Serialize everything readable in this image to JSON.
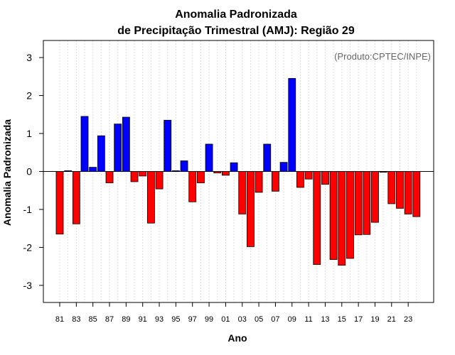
{
  "chart_data": {
    "type": "bar",
    "title": "Anomalia Padronizada",
    "subtitle": "de Precipitação Trimestral (AMJ): Região 29",
    "xlabel": "Ano",
    "ylabel": "Anomalia Padronizada",
    "credit": "(Produto:CPTEC/INPE)",
    "ylim": [
      -3.45,
      3.45
    ],
    "yticks": [
      -3,
      -2,
      -1,
      0,
      1,
      2,
      3
    ],
    "grid": "vertical dotted",
    "years": [
      1981,
      1982,
      1983,
      1984,
      1985,
      1986,
      1987,
      1988,
      1989,
      1990,
      1991,
      1992,
      1993,
      1994,
      1995,
      1996,
      1997,
      1998,
      1999,
      2000,
      2001,
      2002,
      2003,
      2004,
      2005,
      2006,
      2007,
      2008,
      2009,
      2010,
      2011,
      2012,
      2013,
      2014,
      2015,
      2016,
      2017,
      2018,
      2019,
      2020,
      2021,
      2022,
      2023,
      2024
    ],
    "x_tick_labels": [
      "81",
      "83",
      "85",
      "87",
      "89",
      "91",
      "93",
      "95",
      "97",
      "99",
      "01",
      "03",
      "05",
      "07",
      "09",
      "11",
      "13",
      "15",
      "17",
      "19",
      "21",
      "23"
    ],
    "values": [
      -1.65,
      0.02,
      -1.38,
      1.45,
      0.11,
      0.94,
      -0.3,
      1.25,
      1.43,
      -0.27,
      -0.12,
      -1.36,
      -0.46,
      1.35,
      0.02,
      0.28,
      -0.8,
      -0.3,
      0.72,
      -0.04,
      -0.1,
      0.23,
      -1.12,
      -1.98,
      -0.55,
      0.72,
      -0.52,
      0.24,
      2.45,
      -0.42,
      -0.2,
      -2.45,
      -0.34,
      -2.32,
      -2.47,
      -2.29,
      -1.67,
      -1.66,
      -1.34,
      -0.02,
      -0.85,
      -0.97,
      -1.12,
      -1.19
    ],
    "positive_color": "#0000ff",
    "negative_color": "#ff0000"
  }
}
